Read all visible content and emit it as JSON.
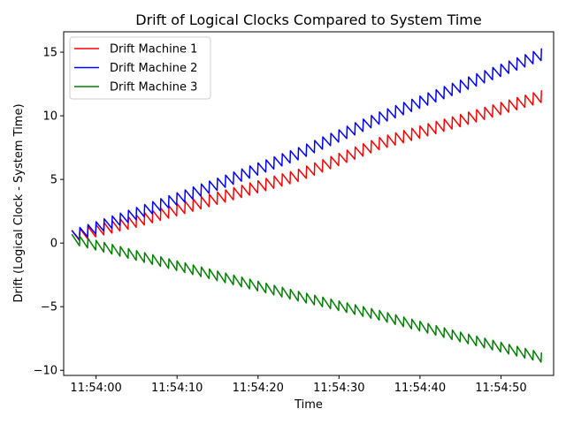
{
  "chart_data": {
    "type": "line",
    "title": "Drift of Logical Clocks Compared to System Time",
    "xlabel": "Time",
    "ylabel": "Drift (Logical Clock - System Time)",
    "x_unit": "time of day (HH:MM:SS)",
    "x_range": [
      "11:53:57",
      "11:54:55"
    ],
    "xlim": [
      "11:53:56",
      "11:54:56.5"
    ],
    "ylim": [
      -10.4,
      16.6
    ],
    "x_ticks": [
      "11:54:00",
      "11:54:10",
      "11:54:20",
      "11:54:30",
      "11:54:40",
      "11:54:50"
    ],
    "y_ticks": [
      -10,
      -5,
      0,
      5,
      10,
      15
    ],
    "grid": false,
    "legend_position": "top-left",
    "series": [
      {
        "name": "Drift Machine 1",
        "color": "#ff0000",
        "pattern": "sawtooth",
        "sawtooth_period_s": 1.0,
        "sawtooth_amplitude": 1.0,
        "x": [
          "11:53:57",
          "11:54:05",
          "11:54:15",
          "11:54:25",
          "11:54:35",
          "11:54:45",
          "11:54:55"
        ],
        "values": [
          0.5,
          1.7,
          3.5,
          5.3,
          7.8,
          9.6,
          11.5
        ]
      },
      {
        "name": "Drift Machine 2",
        "color": "#0000ff",
        "pattern": "sawtooth",
        "sawtooth_period_s": 1.0,
        "sawtooth_amplitude": 1.0,
        "x": [
          "11:53:57",
          "11:54:05",
          "11:54:15",
          "11:54:25",
          "11:54:35",
          "11:54:45",
          "11:54:55"
        ],
        "values": [
          0.5,
          2.3,
          4.6,
          7.0,
          9.8,
          12.3,
          14.8
        ]
      },
      {
        "name": "Drift Machine 3",
        "color": "#008000",
        "pattern": "sawtooth",
        "sawtooth_period_s": 1.0,
        "sawtooth_amplitude": 0.8,
        "x": [
          "11:53:57",
          "11:54:05",
          "11:54:15",
          "11:54:25",
          "11:54:35",
          "11:54:45",
          "11:54:55"
        ],
        "values": [
          0.3,
          -1.0,
          -2.6,
          -4.2,
          -5.7,
          -7.4,
          -9.0
        ]
      }
    ]
  }
}
